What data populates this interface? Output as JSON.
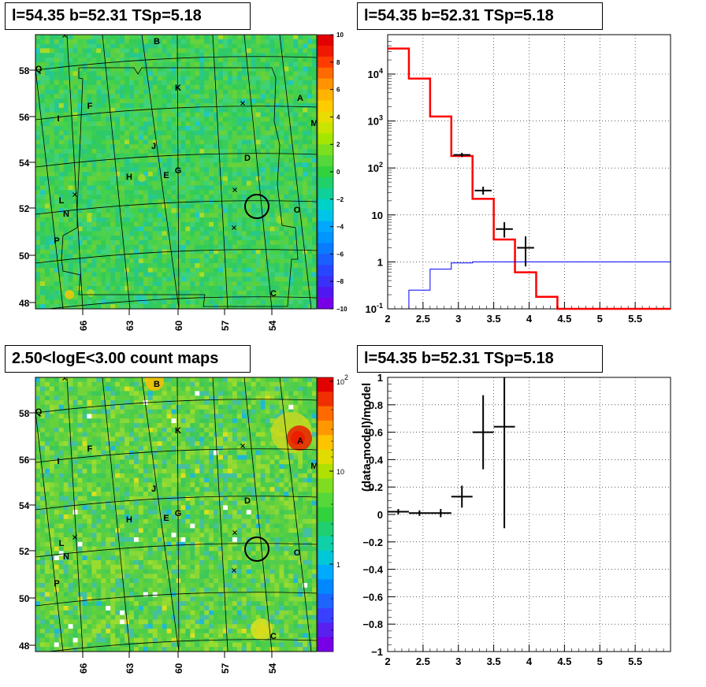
{
  "panels": {
    "top_left_title": "l=54.35 b=52.31 TSp=5.18",
    "top_right_title": "l=54.35 b=52.31 TSp=5.18",
    "bottom_left_title": "2.50<logE<3.00 count maps",
    "bottom_right_title": "l=54.35 b=52.31 TSp=5.18"
  },
  "chart_data": [
    {
      "type": "heatmap",
      "title": "l=54.35 b=52.31 TSp=5.18",
      "xticks": [
        "66",
        "63",
        "60",
        "57",
        "54"
      ],
      "yticks": [
        "58",
        "56",
        "54",
        "52",
        "50",
        "48"
      ],
      "colorbar": {
        "min": -10,
        "max": 10,
        "ticks": [
          "10",
          "8",
          "6",
          "4",
          "2",
          "0",
          "−2",
          "−4",
          "−6",
          "−8",
          "−10"
        ]
      },
      "source_labels": [
        "B",
        "Q",
        "K",
        "A",
        "F",
        "I",
        "M",
        "J",
        "D",
        "H",
        "E",
        "G",
        "L",
        "N",
        "O",
        "P",
        "C"
      ],
      "marker": "circle"
    },
    {
      "type": "line",
      "title": "l=54.35 b=52.31 TSp=5.18",
      "xlim": [
        2,
        6
      ],
      "ylog": true,
      "ylim": [
        0.1,
        50000
      ],
      "xticks": [
        "2",
        "2.5",
        "3",
        "3.5",
        "4",
        "4.5",
        "5",
        "5.5"
      ],
      "yticks": [
        "10^{-1}",
        "1",
        "10",
        "10^{2}",
        "10^{3}",
        "10^{4}"
      ],
      "grid": true,
      "model_red": {
        "edges": [
          2.0,
          2.3,
          2.6,
          2.9,
          3.2,
          3.5,
          3.8,
          4.1,
          4.4,
          6.0
        ],
        "values": [
          35000,
          8000,
          1250,
          180,
          22,
          3.0,
          0.6,
          0.18,
          0.1
        ]
      },
      "model_blue": {
        "edges": [
          2.3,
          2.6,
          2.9,
          3.2,
          3.5,
          6.0
        ],
        "values": [
          0.25,
          0.7,
          0.95,
          1.0,
          1.0
        ]
      },
      "data_points": [
        {
          "x": 3.05,
          "y": 190,
          "xerr": 0.12,
          "ylo": 170,
          "yhi": 210
        },
        {
          "x": 3.35,
          "y": 33,
          "xerr": 0.12,
          "ylo": 27,
          "yhi": 40
        },
        {
          "x": 3.65,
          "y": 5,
          "xerr": 0.12,
          "ylo": 3.3,
          "yhi": 7
        },
        {
          "x": 3.95,
          "y": 2,
          "xerr": 0.12,
          "ylo": 0.8,
          "yhi": 3.5
        }
      ]
    },
    {
      "type": "heatmap",
      "title": "2.50<logE<3.00 count maps",
      "xticks": [
        "66",
        "63",
        "60",
        "57",
        "54"
      ],
      "yticks": [
        "58",
        "56",
        "54",
        "52",
        "50",
        "48"
      ],
      "colorbar": {
        "log": true,
        "ticks": [
          "10^{2}",
          "10",
          "1"
        ]
      },
      "source_labels": [
        "B",
        "Q",
        "K",
        "A",
        "F",
        "I",
        "M",
        "J",
        "D",
        "H",
        "E",
        "G",
        "L",
        "N",
        "O",
        "P",
        "C"
      ],
      "marker": "circle"
    },
    {
      "type": "scatter",
      "title": "l=54.35 b=52.31 TSp=5.18",
      "ylabel": "(data-model)/model",
      "xlim": [
        2,
        6
      ],
      "ylim": [
        -1,
        1
      ],
      "xticks": [
        "2",
        "2.5",
        "3",
        "3.5",
        "4",
        "4.5",
        "5",
        "5.5"
      ],
      "yticks": [
        "1",
        "0.8",
        "0.6",
        "0.4",
        "0.2",
        "0",
        "−0.2",
        "−0.4",
        "−0.6",
        "−0.8",
        "−1"
      ],
      "grid": true,
      "points": [
        {
          "x": 2.15,
          "y": 0.02,
          "xerr": 0.15,
          "yerr": 0.02
        },
        {
          "x": 2.45,
          "y": 0.01,
          "xerr": 0.15,
          "yerr": 0.02
        },
        {
          "x": 2.75,
          "y": 0.01,
          "xerr": 0.15,
          "yerr": 0.03
        },
        {
          "x": 3.05,
          "y": 0.13,
          "xerr": 0.15,
          "yerr": 0.08
        },
        {
          "x": 3.35,
          "y": 0.6,
          "xerr": 0.15,
          "yerr": 0.27
        },
        {
          "x": 3.65,
          "y": 0.64,
          "xerr": 0.15,
          "yerr": 0.74
        }
      ]
    }
  ]
}
